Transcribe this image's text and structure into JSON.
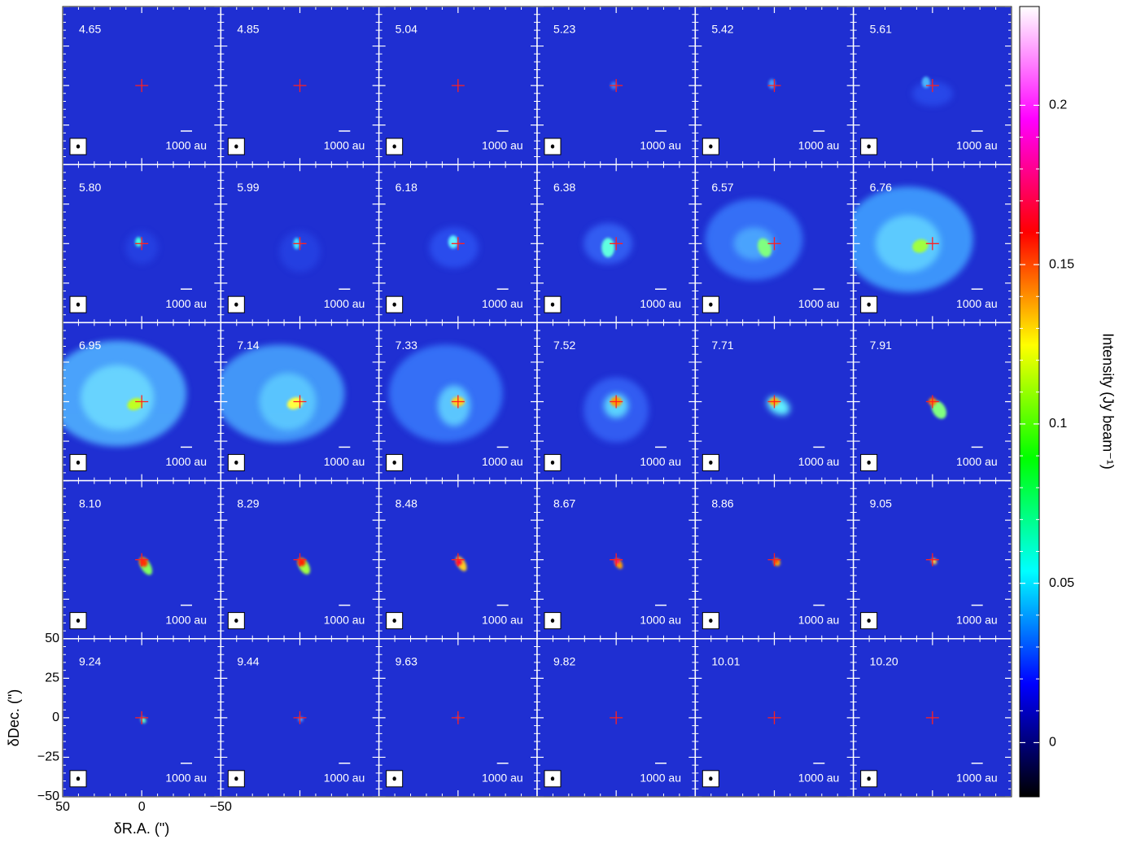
{
  "chart_data": {
    "type": "channel_map",
    "channels": [
      "4.65",
      "4.85",
      "5.04",
      "5.23",
      "5.42",
      "5.61",
      "5.80",
      "5.99",
      "6.18",
      "6.38",
      "6.57",
      "6.76",
      "6.95",
      "7.14",
      "7.33",
      "7.52",
      "7.71",
      "7.91",
      "8.10",
      "8.29",
      "8.48",
      "8.67",
      "8.86",
      "9.05",
      "9.24",
      "9.44",
      "9.63",
      "9.82",
      "10.01",
      "10.20"
    ],
    "scale_bar_label": "1000 au",
    "xlabel": "δR.A. (\")",
    "ylabel": "δDec. (\")",
    "xlim": [
      50,
      -50
    ],
    "ylim": [
      -50,
      50
    ],
    "xticks": [
      50,
      0,
      {
        "value": -50,
        "label": "−50"
      }
    ],
    "yticks": [
      {
        "value": -50,
        "label": "−50"
      },
      {
        "value": -25,
        "label": "−25"
      },
      0,
      25,
      50
    ],
    "marker_color": "#ff2020",
    "colorbar": {
      "label": "Intensity (Jy beam⁻¹)",
      "lim": [
        -0.017,
        0.231
      ],
      "ticks": [
        0,
        0.05,
        0.1,
        0.15,
        0.2
      ],
      "colormap": [
        "#000000",
        "#0000ff",
        "#00ffff",
        "#00ff00",
        "#ffff00",
        "#ff0000",
        "#ff00ff",
        "#ffffff"
      ]
    }
  }
}
